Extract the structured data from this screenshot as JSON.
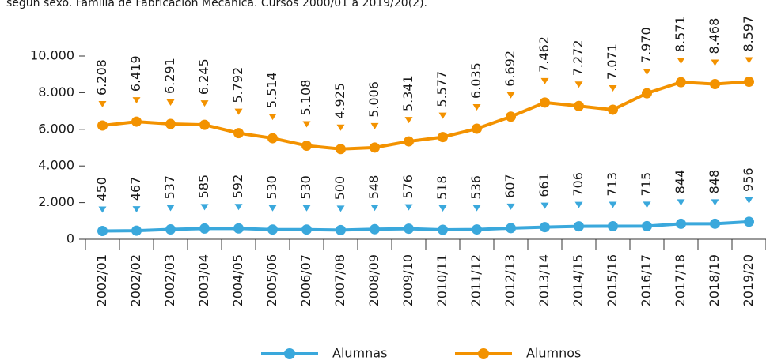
{
  "chart_data": {
    "type": "line",
    "title": "según sexo. Familia de Fabricación Mecánica. Cursos 2000/01 a 2019/20(2).",
    "categories": [
      "2002/01",
      "2002/02",
      "2002/03",
      "2003/04",
      "2004/05",
      "2005/06",
      "2006/07",
      "2007/08",
      "2008/09",
      "2009/10",
      "2010/11",
      "2011/12",
      "2012/13",
      "2013/14",
      "2014/15",
      "2015/16",
      "2016/17",
      "2017/18",
      "2018/19",
      "2019/20"
    ],
    "series": [
      {
        "name": "Alumnas",
        "color": "#3aa8dc",
        "values": [
          450,
          467,
          537,
          585,
          592,
          530,
          530,
          500,
          548,
          576,
          518,
          536,
          607,
          661,
          706,
          713,
          715,
          844,
          848,
          956
        ],
        "value_labels": [
          "450",
          "467",
          "537",
          "585",
          "592",
          "530",
          "530",
          "500",
          "548",
          "576",
          "518",
          "536",
          "607",
          "661",
          "706",
          "713",
          "715",
          "844",
          "848",
          "956"
        ]
      },
      {
        "name": "Alumnos",
        "color": "#f39200",
        "values": [
          6208,
          6419,
          6291,
          6245,
          5792,
          5514,
          5108,
          4925,
          5006,
          5341,
          5577,
          6035,
          6692,
          7462,
          7272,
          7071,
          7970,
          8571,
          8468,
          8597
        ],
        "value_labels": [
          "6.208",
          "6.419",
          "6.291",
          "6.245",
          "5.792",
          "5.514",
          "5.108",
          "4.925",
          "5.006",
          "5.341",
          "5.577",
          "6.035",
          "6.692",
          "7.462",
          "7.272",
          "7.071",
          "7.970",
          "8.571",
          "8.468",
          "8.597"
        ]
      }
    ],
    "ylim": [
      0,
      10000
    ],
    "yticks": [
      0,
      {
        "value": 2000,
        "label": "2.000"
      },
      {
        "value": 4000,
        "label": "4.000"
      },
      {
        "value": 6000,
        "label": "6.000"
      },
      {
        "value": 8000,
        "label": "8.000"
      },
      {
        "value": 10000,
        "label": "10.000"
      }
    ],
    "grid": false,
    "legend": "bottom"
  }
}
